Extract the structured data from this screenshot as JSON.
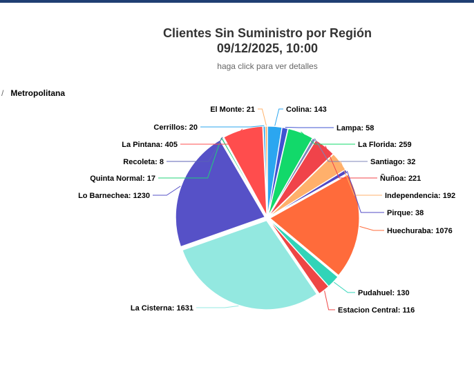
{
  "chart_data": {
    "type": "pie",
    "title": "Clientes Sin Suministro por Región",
    "title_line2": "09/12/2025, 10:00",
    "subtitle": "haga click para ver detalles",
    "breadcrumb": {
      "separator": "/",
      "current": "Metropolitana"
    },
    "series": [
      {
        "data": [
          {
            "name": "Colina",
            "value": 143,
            "color": "#2ba6f0"
          },
          {
            "name": "Lampa",
            "value": 58,
            "color": "#3f53d1"
          },
          {
            "name": "La Florida",
            "value": 259,
            "color": "#12d96a"
          },
          {
            "name": "Santiago",
            "value": 32,
            "color": "#7c85b8"
          },
          {
            "name": "Ñuñoa",
            "value": 221,
            "color": "#f0434a"
          },
          {
            "name": "Independencia",
            "value": 192,
            "color": "#ffb06b"
          },
          {
            "name": "Pirque",
            "value": 38,
            "color": "#5148c4"
          },
          {
            "name": "Huechuraba",
            "value": 1076,
            "color": "#ff6b3b"
          },
          {
            "name": "Pudahuel",
            "value": 130,
            "color": "#31d4b8"
          },
          {
            "name": "Estacion Central",
            "value": 116,
            "color": "#ee4645"
          },
          {
            "name": "La Cisterna",
            "value": 1631,
            "color": "#93e8e0"
          },
          {
            "name": "Lo Barnechea",
            "value": 1230,
            "color": "#5651c7"
          },
          {
            "name": "Quinta Normal",
            "value": 17,
            "color": "#22d07a"
          },
          {
            "name": "Recoleta",
            "value": 8,
            "color": "#5b62b6"
          },
          {
            "name": "La Pintana",
            "value": 405,
            "color": "#ff4d4d"
          },
          {
            "name": "Cerrillos",
            "value": 20,
            "color": "#2aa4ec"
          },
          {
            "name": "El Monte",
            "value": 21,
            "color": "#ffb26b"
          }
        ]
      }
    ],
    "legend": "none",
    "data_labels": "name: value"
  }
}
